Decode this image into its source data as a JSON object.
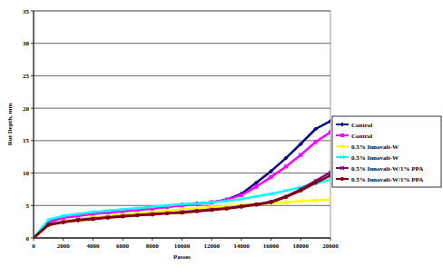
{
  "chart_data": {
    "type": "line",
    "x_label": "Passes",
    "y_label": "Rut Depth, mm",
    "x": [
      0,
      1000,
      2000,
      3000,
      4000,
      5000,
      6000,
      7000,
      8000,
      9000,
      10000,
      11000,
      12000,
      13000,
      14000,
      15000,
      16000,
      17000,
      18000,
      19000,
      20000
    ],
    "series": [
      {
        "name": "Control",
        "color": "#000080",
        "marker": "diamond",
        "values": [
          0,
          2.5,
          3.2,
          3.5,
          3.8,
          4.0,
          4.2,
          4.4,
          4.6,
          4.8,
          5.1,
          5.3,
          5.5,
          5.9,
          6.8,
          8.5,
          10.3,
          12.3,
          14.5,
          16.8,
          18.0
        ]
      },
      {
        "name": "Control",
        "color": "#ff00ff",
        "marker": "square",
        "values": [
          0,
          2.4,
          3.1,
          3.4,
          3.7,
          3.9,
          4.1,
          4.3,
          4.5,
          4.8,
          5.0,
          5.2,
          5.5,
          5.9,
          6.6,
          7.9,
          9.4,
          11.0,
          12.8,
          14.8,
          16.3
        ]
      },
      {
        "name": "0.5% Innovalt-W",
        "color": "#ffff00",
        "marker": "triangle",
        "values": [
          0,
          2.0,
          2.6,
          2.9,
          3.2,
          3.4,
          3.6,
          3.8,
          4.0,
          4.2,
          4.4,
          4.6,
          4.8,
          4.9,
          5.1,
          5.2,
          5.4,
          5.5,
          5.7,
          5.8,
          5.9
        ]
      },
      {
        "name": "0.5% Innovalt-W",
        "color": "#00ffff",
        "marker": "x",
        "values": [
          0,
          2.8,
          3.4,
          3.7,
          4.0,
          4.2,
          4.4,
          4.6,
          4.8,
          5.0,
          5.2,
          5.3,
          5.5,
          5.7,
          6.0,
          6.4,
          6.8,
          7.3,
          7.8,
          8.4,
          9.0
        ]
      },
      {
        "name": "0.5% Innovalt-W/1% PPA",
        "color": "#800080",
        "marker": "star",
        "values": [
          0,
          2.1,
          2.5,
          2.8,
          3.0,
          3.2,
          3.4,
          3.5,
          3.7,
          3.8,
          4.0,
          4.2,
          4.4,
          4.6,
          4.9,
          5.2,
          5.6,
          6.4,
          7.5,
          8.8,
          10.1
        ]
      },
      {
        "name": "0.5% Innovalt-W/1% PPA",
        "color": "#800000",
        "marker": "circle",
        "values": [
          0,
          2.0,
          2.4,
          2.7,
          2.9,
          3.1,
          3.3,
          3.5,
          3.6,
          3.8,
          3.9,
          4.1,
          4.3,
          4.5,
          4.8,
          5.1,
          5.5,
          6.3,
          7.3,
          8.5,
          9.6
        ]
      }
    ],
    "xlim": [
      0,
      20000
    ],
    "xticks": [
      0,
      2000,
      4000,
      6000,
      8000,
      10000,
      12000,
      14000,
      16000,
      18000,
      20000
    ],
    "ylim": [
      0,
      35
    ],
    "yticks": [
      0,
      5,
      10,
      15,
      20,
      25,
      30,
      35
    ],
    "grid": true,
    "legend": "right"
  }
}
